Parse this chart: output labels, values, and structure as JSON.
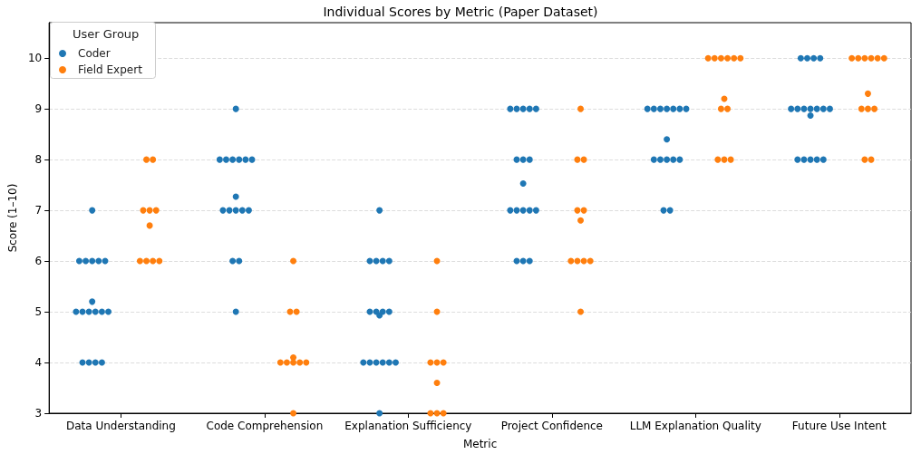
{
  "chart_data": {
    "type": "scatter",
    "title": "Individual Scores by Metric (Paper Dataset)",
    "xlabel": "Metric",
    "ylabel": "Score (1–10)",
    "legend_title": "User Group",
    "legend": "top left",
    "grid": "y",
    "marker": "circle",
    "categories": [
      "Data Understanding",
      "Code Comprehension",
      "Explanation Sufficiency",
      "Project Confidence",
      "LLM Explanation Quality",
      "Future Use Intent"
    ],
    "ylim": [
      3,
      10.7
    ],
    "yticks": [
      3,
      4,
      5,
      6,
      7,
      8,
      9,
      10
    ],
    "series": [
      {
        "name": "Coder",
        "color": "#1f77b4",
        "x": [
          "Data Understanding",
          "Data Understanding",
          "Data Understanding",
          "Data Understanding",
          "Data Understanding",
          "Data Understanding",
          "Data Understanding",
          "Data Understanding",
          "Data Understanding",
          "Data Understanding",
          "Data Understanding",
          "Data Understanding",
          "Data Understanding",
          "Data Understanding",
          "Data Understanding",
          "Data Understanding",
          "Data Understanding",
          "Code Comprehension",
          "Code Comprehension",
          "Code Comprehension",
          "Code Comprehension",
          "Code Comprehension",
          "Code Comprehension",
          "Code Comprehension",
          "Code Comprehension",
          "Code Comprehension",
          "Code Comprehension",
          "Code Comprehension",
          "Code Comprehension",
          "Code Comprehension",
          "Code Comprehension",
          "Code Comprehension",
          "Code Comprehension",
          "Explanation Sufficiency",
          "Explanation Sufficiency",
          "Explanation Sufficiency",
          "Explanation Sufficiency",
          "Explanation Sufficiency",
          "Explanation Sufficiency",
          "Explanation Sufficiency",
          "Explanation Sufficiency",
          "Explanation Sufficiency",
          "Explanation Sufficiency",
          "Explanation Sufficiency",
          "Explanation Sufficiency",
          "Explanation Sufficiency",
          "Explanation Sufficiency",
          "Explanation Sufficiency",
          "Explanation Sufficiency",
          "Explanation Sufficiency",
          "Project Confidence",
          "Project Confidence",
          "Project Confidence",
          "Project Confidence",
          "Project Confidence",
          "Project Confidence",
          "Project Confidence",
          "Project Confidence",
          "Project Confidence",
          "Project Confidence",
          "Project Confidence",
          "Project Confidence",
          "Project Confidence",
          "Project Confidence",
          "Project Confidence",
          "Project Confidence",
          "Project Confidence",
          "LLM Explanation Quality",
          "LLM Explanation Quality",
          "LLM Explanation Quality",
          "LLM Explanation Quality",
          "LLM Explanation Quality",
          "LLM Explanation Quality",
          "LLM Explanation Quality",
          "LLM Explanation Quality",
          "LLM Explanation Quality",
          "LLM Explanation Quality",
          "LLM Explanation Quality",
          "LLM Explanation Quality",
          "LLM Explanation Quality",
          "LLM Explanation Quality",
          "LLM Explanation Quality",
          "Future Use Intent",
          "Future Use Intent",
          "Future Use Intent",
          "Future Use Intent",
          "Future Use Intent",
          "Future Use Intent",
          "Future Use Intent",
          "Future Use Intent",
          "Future Use Intent",
          "Future Use Intent",
          "Future Use Intent",
          "Future Use Intent",
          "Future Use Intent",
          "Future Use Intent",
          "Future Use Intent",
          "Future Use Intent",
          "Future Use Intent"
        ],
        "values": [
          7,
          6,
          6,
          6,
          6,
          6,
          5.2,
          5,
          5,
          5,
          5,
          5,
          5,
          4,
          4,
          4,
          4,
          9,
          8,
          8,
          8,
          8,
          8,
          8,
          7.27,
          7,
          7,
          7,
          7,
          7,
          6,
          6,
          5,
          7,
          6,
          6,
          6,
          6,
          5,
          5,
          5,
          5,
          4.93,
          4,
          4,
          4,
          4,
          4,
          4,
          3,
          9,
          9,
          9,
          9,
          9,
          8,
          8,
          8,
          7.53,
          7,
          7,
          7,
          7,
          7,
          6,
          6,
          6,
          9,
          9,
          9,
          9,
          9,
          9,
          9,
          8.4,
          8,
          8,
          8,
          8,
          8,
          7,
          7,
          10,
          10,
          10,
          10,
          9,
          9,
          9,
          9,
          9,
          9,
          9,
          8.87,
          8,
          8,
          8,
          8,
          8
        ]
      },
      {
        "name": "Field Expert",
        "color": "#ff7f0e",
        "x": [
          "Data Understanding",
          "Data Understanding",
          "Data Understanding",
          "Data Understanding",
          "Data Understanding",
          "Data Understanding",
          "Data Understanding",
          "Data Understanding",
          "Data Understanding",
          "Data Understanding",
          "Code Comprehension",
          "Code Comprehension",
          "Code Comprehension",
          "Code Comprehension",
          "Code Comprehension",
          "Code Comprehension",
          "Code Comprehension",
          "Code Comprehension",
          "Code Comprehension",
          "Code Comprehension",
          "Explanation Sufficiency",
          "Explanation Sufficiency",
          "Explanation Sufficiency",
          "Explanation Sufficiency",
          "Explanation Sufficiency",
          "Explanation Sufficiency",
          "Explanation Sufficiency",
          "Explanation Sufficiency",
          "Explanation Sufficiency",
          "Project Confidence",
          "Project Confidence",
          "Project Confidence",
          "Project Confidence",
          "Project Confidence",
          "Project Confidence",
          "Project Confidence",
          "Project Confidence",
          "Project Confidence",
          "Project Confidence",
          "Project Confidence",
          "LLM Explanation Quality",
          "LLM Explanation Quality",
          "LLM Explanation Quality",
          "LLM Explanation Quality",
          "LLM Explanation Quality",
          "LLM Explanation Quality",
          "LLM Explanation Quality",
          "LLM Explanation Quality",
          "LLM Explanation Quality",
          "LLM Explanation Quality",
          "LLM Explanation Quality",
          "LLM Explanation Quality",
          "Future Use Intent",
          "Future Use Intent",
          "Future Use Intent",
          "Future Use Intent",
          "Future Use Intent",
          "Future Use Intent",
          "Future Use Intent",
          "Future Use Intent",
          "Future Use Intent",
          "Future Use Intent",
          "Future Use Intent",
          "Future Use Intent"
        ],
        "values": [
          8,
          8,
          7,
          7,
          7,
          6.7,
          6,
          6,
          6,
          6,
          6,
          5,
          5,
          4.1,
          4,
          4,
          4,
          4,
          4,
          3,
          6,
          5,
          4,
          4,
          4,
          3.6,
          3,
          3,
          3,
          9,
          8,
          8,
          7,
          7,
          6.8,
          6,
          6,
          6,
          6,
          5,
          10,
          10,
          10,
          10,
          10,
          10,
          9.2,
          9,
          9,
          8,
          8,
          8,
          10,
          10,
          10,
          10,
          10,
          10,
          9.3,
          9,
          9,
          9,
          8,
          8
        ]
      }
    ]
  }
}
